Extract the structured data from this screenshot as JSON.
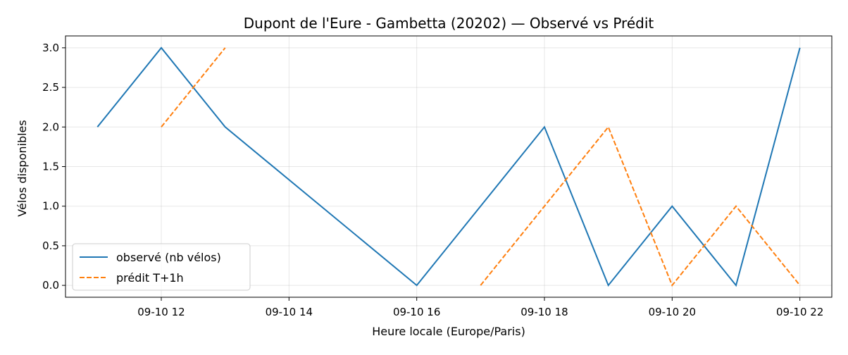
{
  "chart_data": {
    "type": "line",
    "title": "Dupont de l'Eure - Gambetta (20202) — Observé vs Prédit",
    "xlabel": "Heure locale (Europe/Paris)",
    "ylabel": "Vélos disponibles",
    "x_unit": "hour of 2025-09-10",
    "xlim": [
      10.5,
      22.5
    ],
    "ylim": [
      -0.15,
      3.15
    ],
    "x_ticks": [
      {
        "value": 12,
        "label": "09-10 12"
      },
      {
        "value": 14,
        "label": "09-10 14"
      },
      {
        "value": 16,
        "label": "09-10 16"
      },
      {
        "value": 18,
        "label": "09-10 18"
      },
      {
        "value": 20,
        "label": "09-10 20"
      },
      {
        "value": 22,
        "label": "09-10 22"
      }
    ],
    "y_ticks": [
      {
        "value": 0,
        "label": "0.0"
      },
      {
        "value": 0.5,
        "label": "0.5"
      },
      {
        "value": 1,
        "label": "1.0"
      },
      {
        "value": 1.5,
        "label": "1.5"
      },
      {
        "value": 2,
        "label": "2.0"
      },
      {
        "value": 2.5,
        "label": "2.5"
      },
      {
        "value": 3,
        "label": "3.0"
      }
    ],
    "grid": true,
    "legend_position": "lower-left",
    "series": [
      {
        "name": "observé (nb vélos)",
        "color": "#1f77b4",
        "style": "solid",
        "segments": [
          [
            [
              11,
              2
            ],
            [
              12,
              3
            ],
            [
              13,
              2
            ],
            [
              16,
              0
            ],
            [
              18,
              2
            ],
            [
              19,
              0
            ],
            [
              20,
              1
            ],
            [
              21,
              0
            ],
            [
              22,
              3
            ]
          ]
        ]
      },
      {
        "name": "prédit T+1h",
        "color": "#ff7f0e",
        "style": "dashed",
        "segments": [
          [
            [
              12,
              2
            ],
            [
              13,
              3
            ]
          ],
          [
            [
              17,
              0
            ],
            [
              18,
              1
            ],
            [
              19,
              2
            ],
            [
              20,
              0
            ],
            [
              21,
              1
            ],
            [
              22,
              0
            ]
          ]
        ]
      }
    ]
  }
}
